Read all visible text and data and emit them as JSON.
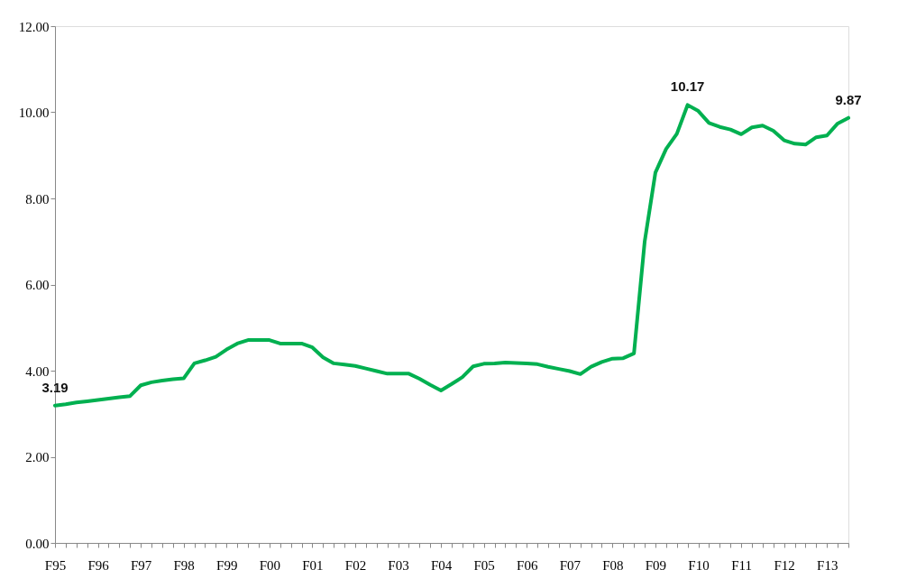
{
  "chart_data": {
    "type": "line",
    "grid": false,
    "marker": "none",
    "line_style": "solid",
    "categories": [
      "F95",
      null,
      null,
      null,
      "F96",
      null,
      null,
      null,
      "F97",
      null,
      null,
      null,
      "F98",
      null,
      null,
      null,
      "F99",
      null,
      null,
      null,
      "F00",
      null,
      null,
      null,
      "F01",
      null,
      null,
      null,
      "F02",
      null,
      null,
      null,
      "F03",
      null,
      null,
      null,
      "F04",
      null,
      null,
      null,
      "F05",
      null,
      null,
      null,
      "F06",
      null,
      null,
      null,
      "F07",
      null,
      null,
      null,
      "F08",
      null,
      null,
      null,
      "F09",
      null,
      null,
      null,
      "F10",
      null,
      null,
      null,
      "F11",
      null,
      null,
      null,
      "F12",
      null,
      null,
      null,
      "F13",
      null,
      null
    ],
    "series": [
      {
        "color": "#00b050",
        "values": [
          3.19,
          3.22,
          3.26,
          3.29,
          3.32,
          3.35,
          3.38,
          3.41,
          3.66,
          3.73,
          3.77,
          3.8,
          3.82,
          4.17,
          4.24,
          4.32,
          4.49,
          4.63,
          4.71,
          4.71,
          4.71,
          4.63,
          4.63,
          4.63,
          4.54,
          4.31,
          4.17,
          4.14,
          4.11,
          4.05,
          3.99,
          3.93,
          3.93,
          3.93,
          3.81,
          3.67,
          3.54,
          3.69,
          3.85,
          4.1,
          4.16,
          4.17,
          4.19,
          4.18,
          4.17,
          4.15,
          4.09,
          4.04,
          3.99,
          3.92,
          4.09,
          4.2,
          4.28,
          4.29,
          4.4,
          7.0,
          8.6,
          9.15,
          9.5,
          10.17,
          10.03,
          9.75,
          9.66,
          9.6,
          9.49,
          9.65,
          9.69,
          9.57,
          9.35,
          9.27,
          9.25,
          9.42,
          9.46,
          9.74,
          9.87
        ],
        "value_labels": [
          "3.19",
          null,
          null,
          null,
          null,
          null,
          null,
          null,
          null,
          null,
          null,
          null,
          null,
          null,
          null,
          null,
          null,
          null,
          null,
          null,
          null,
          null,
          null,
          null,
          null,
          null,
          null,
          null,
          null,
          null,
          null,
          null,
          null,
          null,
          null,
          null,
          null,
          null,
          null,
          null,
          null,
          null,
          null,
          null,
          null,
          null,
          null,
          null,
          null,
          null,
          null,
          null,
          null,
          null,
          null,
          null,
          null,
          null,
          null,
          "10.17",
          null,
          null,
          null,
          null,
          null,
          null,
          null,
          null,
          null,
          null,
          null,
          null,
          null,
          null,
          "9.87"
        ]
      }
    ],
    "ylim": [
      0,
      12
    ],
    "yticks": [
      {
        "value": 0,
        "label": "0.00"
      },
      {
        "value": 2,
        "label": "2.00"
      },
      {
        "value": 4,
        "label": "4.00"
      },
      {
        "value": 6,
        "label": "6.00"
      },
      {
        "value": 8,
        "label": "8.00"
      },
      {
        "value": 10,
        "label": "10.00"
      },
      {
        "value": 12,
        "label": "12.00"
      }
    ]
  }
}
